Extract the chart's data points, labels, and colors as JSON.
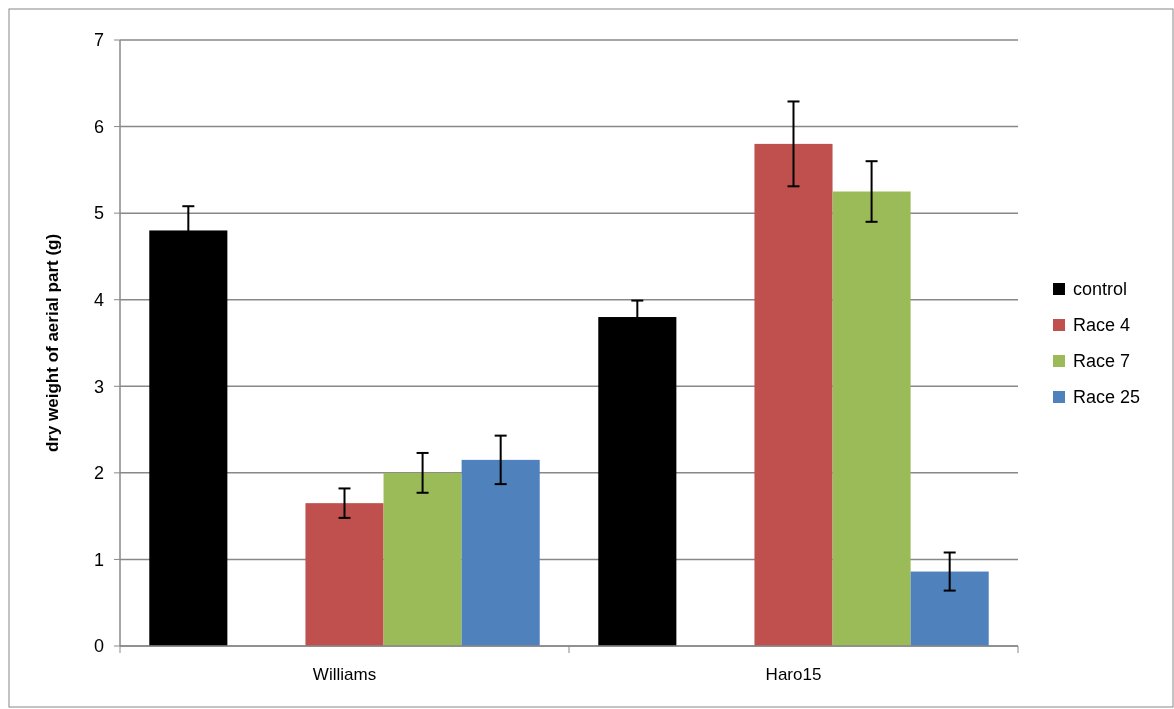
{
  "chart_data": {
    "type": "bar",
    "ylabel": "dry weight of aerial part (g)",
    "categories": [
      "Williams",
      "Haro15"
    ],
    "series": [
      {
        "name": "control",
        "color": "#000000",
        "values": [
          4.8,
          3.8
        ],
        "errors": [
          0.28,
          0.19
        ]
      },
      {
        "values": [
          null,
          null
        ]
      },
      {
        "name": "Race 4",
        "color": "#c0504d",
        "values": [
          1.65,
          5.8
        ],
        "errors": [
          0.17,
          0.49
        ]
      },
      {
        "name": "Race 7",
        "color": "#9bbb59",
        "values": [
          2.0,
          5.25
        ],
        "errors": [
          0.23,
          0.35
        ]
      },
      {
        "name": "Race 25",
        "color": "#4f81bd",
        "values": [
          2.15,
          0.86
        ],
        "errors": [
          0.28,
          0.22
        ]
      }
    ],
    "ylim": [
      0,
      7
    ],
    "yticks": [
      0,
      1,
      2,
      3,
      4,
      5,
      6,
      7
    ],
    "grid": "y",
    "legend": "right"
  }
}
